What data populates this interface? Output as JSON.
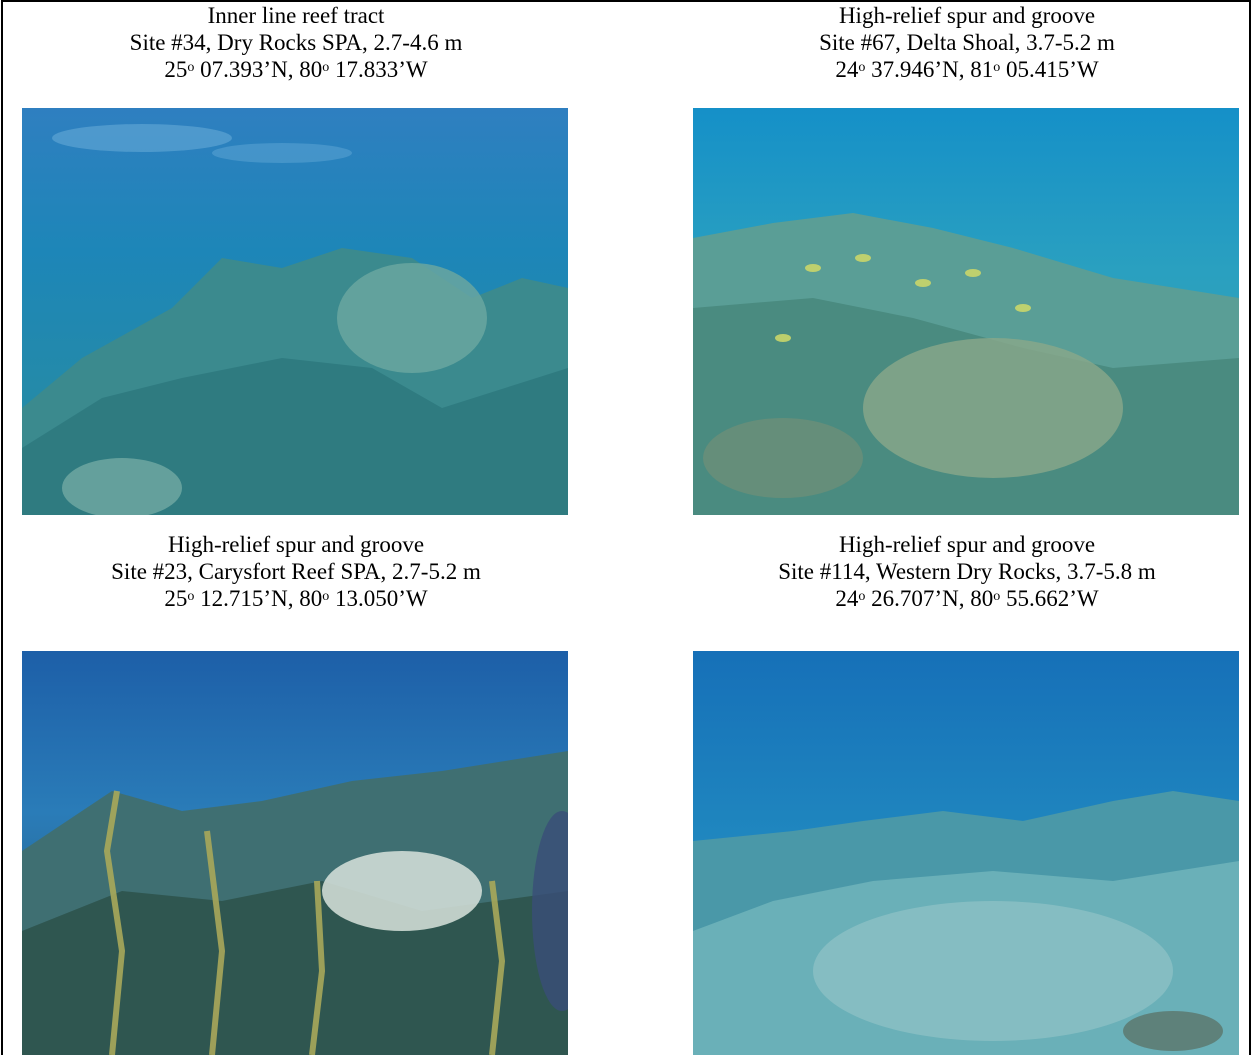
{
  "panels": [
    {
      "habitat": "Inner line reef tract",
      "site": "Site #34, Dry Rocks SPA, 2.7-4.6 m",
      "lat_deg": "25",
      "lat_rest": " 07.393’N, 80",
      "lon_rest": " 17.833’W",
      "photo_icon": "underwater-reef-photo"
    },
    {
      "habitat": "High-relief spur and groove",
      "site": "Site #67, Delta Shoal, 3.7-5.2 m",
      "lat_deg": "24",
      "lat_rest": " 37.946’N, 81",
      "lon_rest": " 05.415’W",
      "photo_icon": "underwater-reef-photo"
    },
    {
      "habitat": "High-relief spur and groove",
      "site": "Site #23, Carysfort Reef SPA, 2.7-5.2 m",
      "lat_deg": "25",
      "lat_rest": " 12.715’N, 80",
      "lon_rest": " 13.050’W",
      "photo_icon": "underwater-reef-photo"
    },
    {
      "habitat": "High-relief spur and groove",
      "site": "Site #114, Western Dry Rocks, 3.7-5.8 m",
      "lat_deg": "24",
      "lat_rest": " 26.707’N, 80",
      "lon_rest": " 55.662’W",
      "photo_icon": "underwater-reef-photo"
    }
  ],
  "degree_mark": "o",
  "colors": {
    "water_top": "#1b6fb0",
    "water_mid": "#2a8fc4",
    "reef": "#3e8f95",
    "border": "#000000"
  }
}
